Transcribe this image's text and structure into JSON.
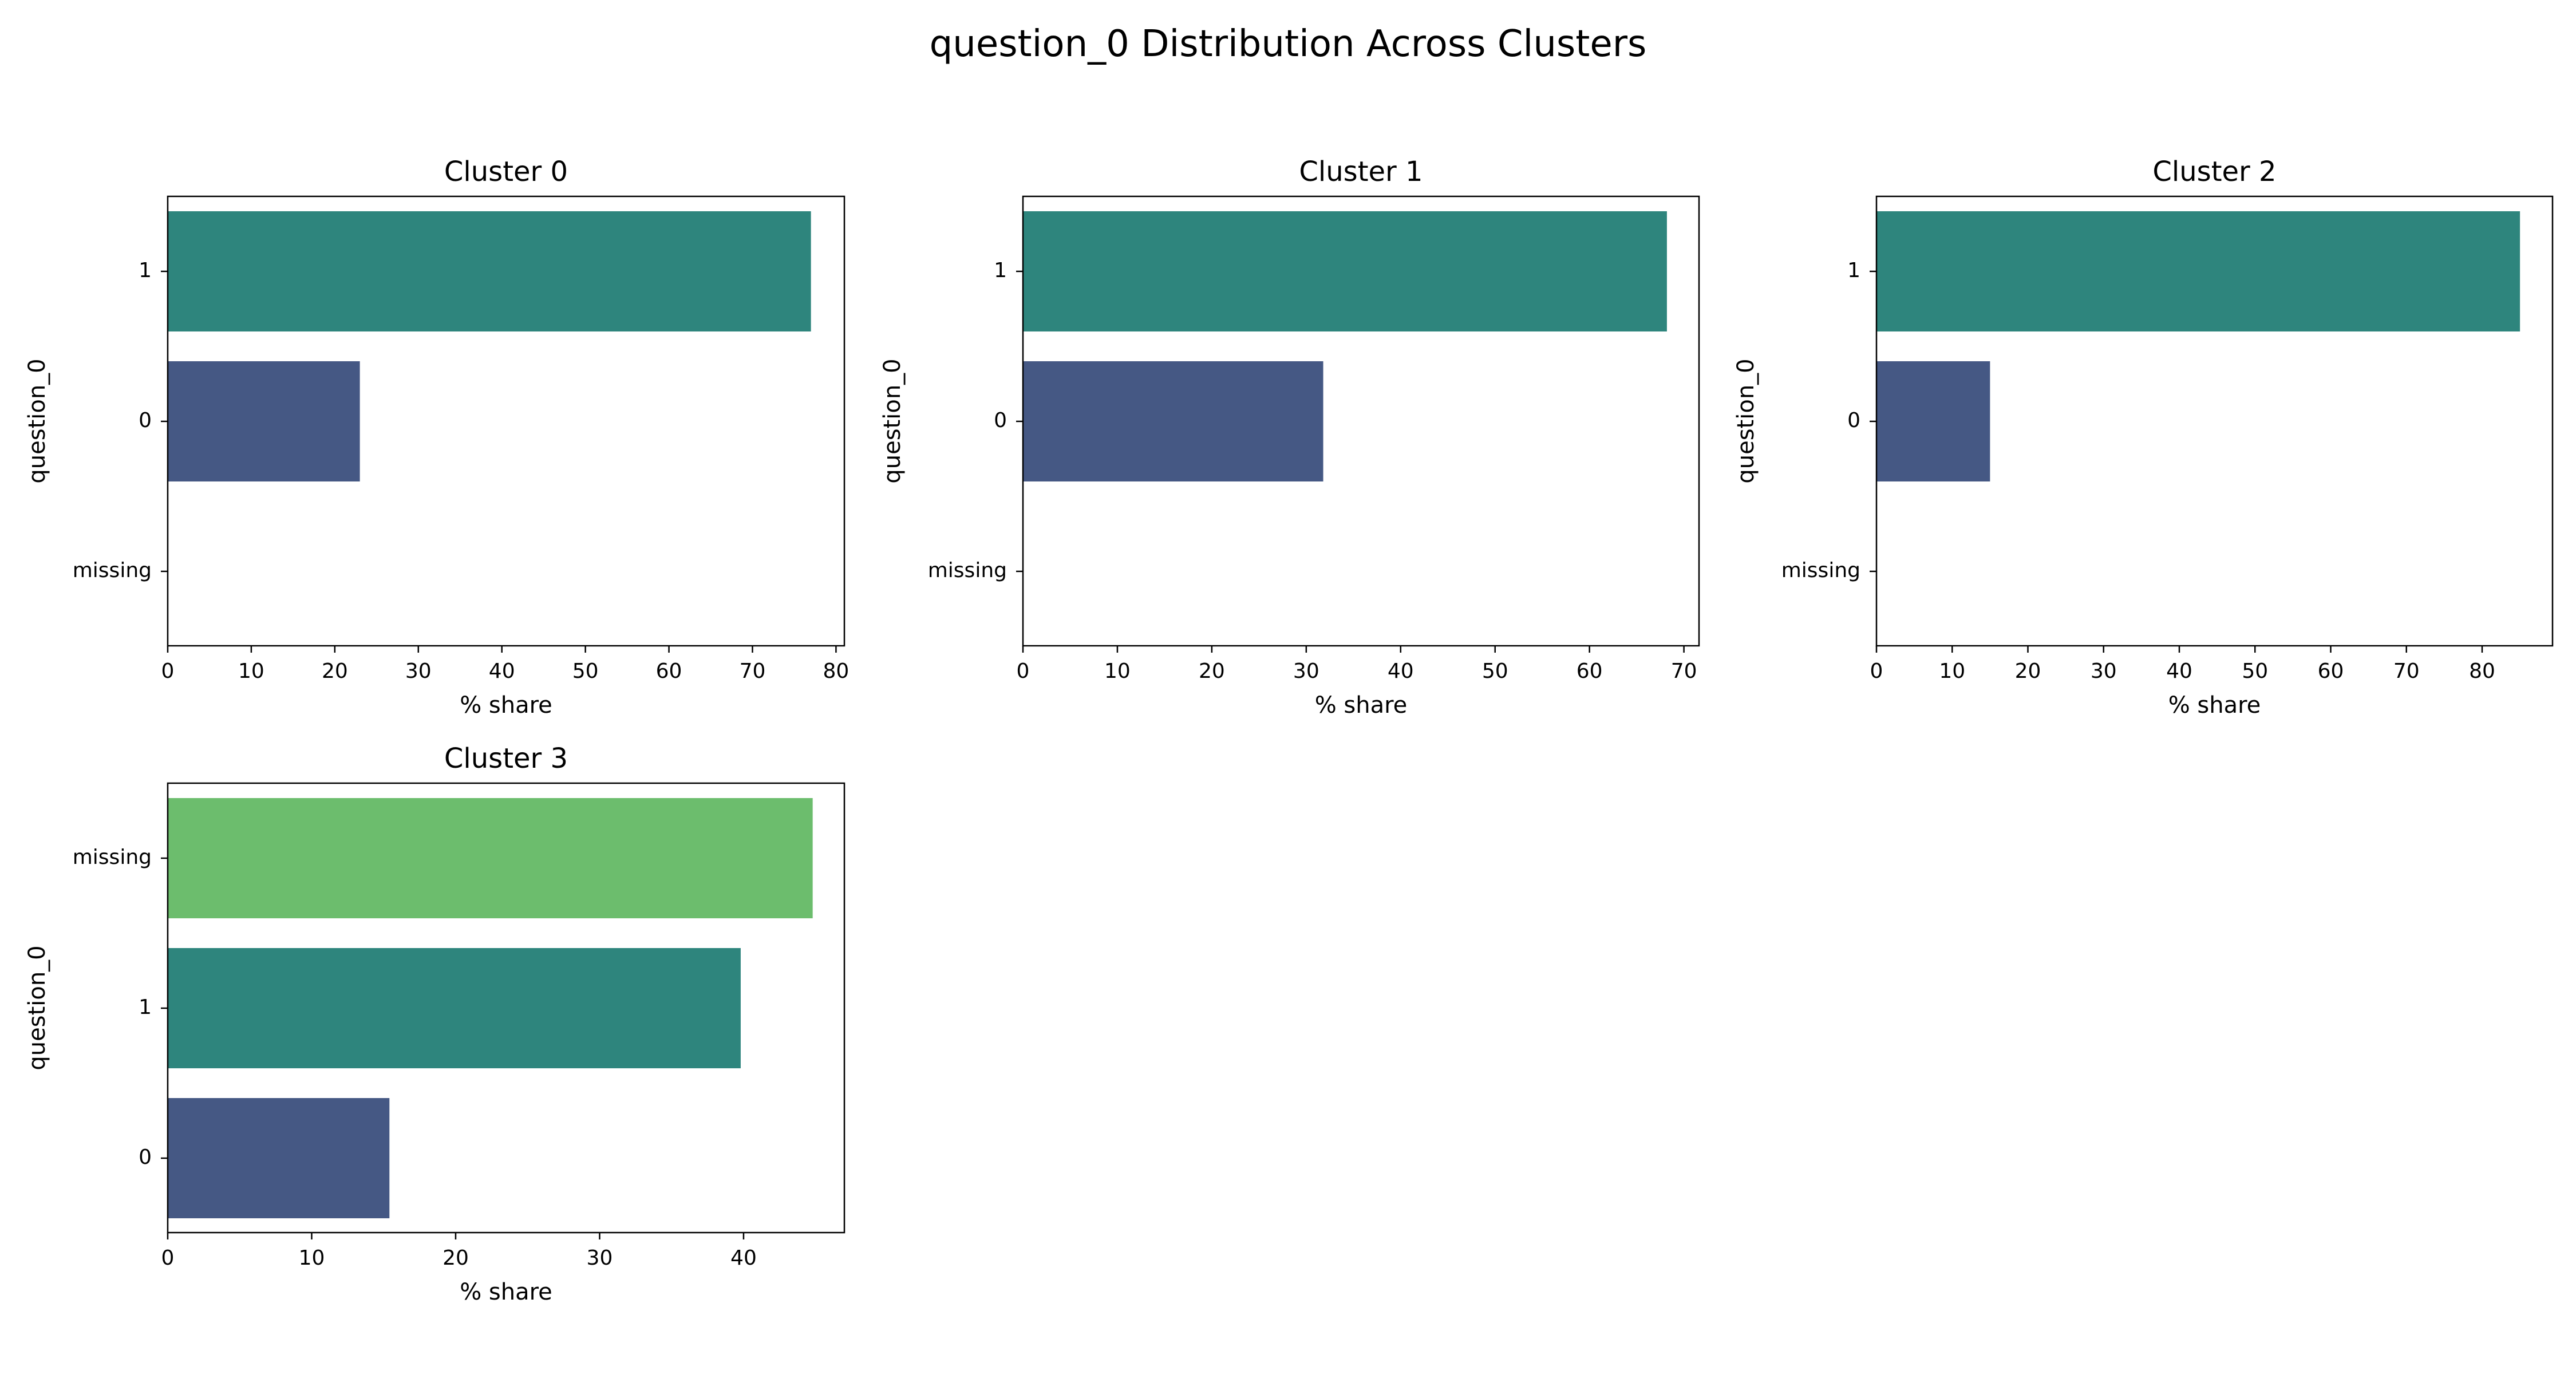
{
  "figure": {
    "title": "question_0 Distribution Across Clusters"
  },
  "colors": {
    "1": "#2e857d",
    "0": "#455884",
    "missing": "#6cbd6d"
  },
  "chart_data": [
    {
      "type": "bar",
      "orientation": "horizontal",
      "title": "Cluster 0",
      "xlabel": "% share",
      "ylabel": "question_0",
      "categories": [
        "1",
        "0",
        "missing"
      ],
      "values": [
        77.0,
        23.0,
        0
      ],
      "xlim": [
        0,
        81
      ],
      "xticks": [
        0,
        10,
        20,
        30,
        40,
        50,
        60,
        70,
        80
      ],
      "grid": false
    },
    {
      "type": "bar",
      "orientation": "horizontal",
      "title": "Cluster 1",
      "xlabel": "% share",
      "ylabel": "question_0",
      "categories": [
        "1",
        "0",
        "missing"
      ],
      "values": [
        68.2,
        31.8,
        0
      ],
      "xlim": [
        0,
        71.6
      ],
      "xticks": [
        0,
        10,
        20,
        30,
        40,
        50,
        60,
        70
      ],
      "grid": false
    },
    {
      "type": "bar",
      "orientation": "horizontal",
      "title": "Cluster 2",
      "xlabel": "% share",
      "ylabel": "question_0",
      "categories": [
        "1",
        "0",
        "missing"
      ],
      "values": [
        85.0,
        15.0,
        0
      ],
      "xlim": [
        0,
        89.3
      ],
      "xticks": [
        0,
        10,
        20,
        30,
        40,
        50,
        60,
        70,
        80
      ],
      "grid": false
    },
    {
      "type": "bar",
      "orientation": "horizontal",
      "title": "Cluster 3",
      "xlabel": "% share",
      "ylabel": "question_0",
      "categories": [
        "missing",
        "1",
        "0"
      ],
      "values": [
        44.8,
        39.8,
        15.4
      ],
      "xlim": [
        0,
        47
      ],
      "xticks": [
        0,
        10,
        20,
        30,
        40
      ],
      "grid": false
    }
  ]
}
